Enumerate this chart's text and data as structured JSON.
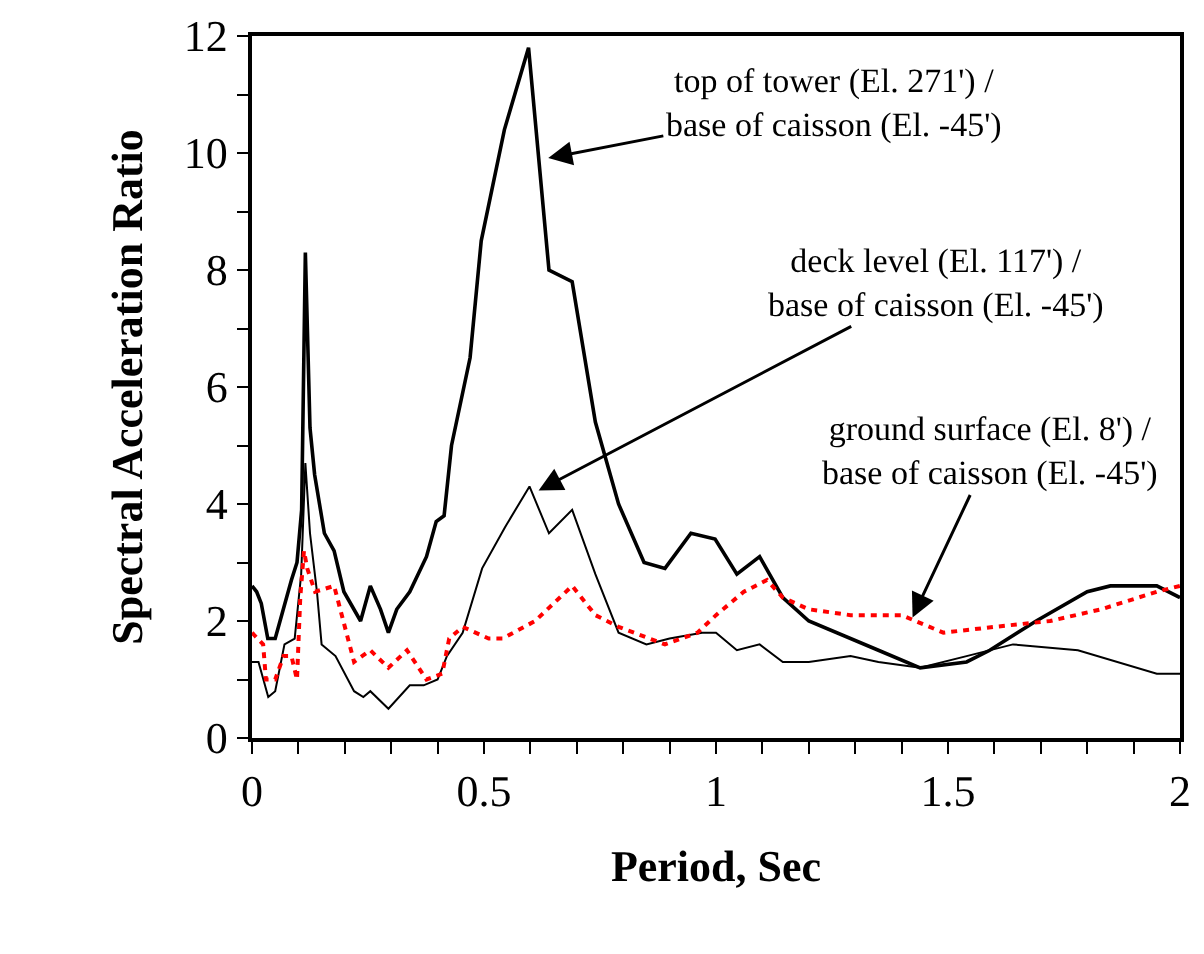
{
  "chart_data": {
    "type": "line",
    "xlabel": "Period, Sec",
    "ylabel": "Spectral Acceleration Ratio",
    "xlim": [
      0,
      2
    ],
    "ylim": [
      0,
      12
    ],
    "xticks": [
      0,
      {
        "value": 0.1,
        "label": null
      },
      {
        "value": 0.2,
        "label": null
      },
      {
        "value": 0.3,
        "label": null
      },
      {
        "value": 0.4,
        "label": null
      },
      0.5,
      {
        "value": 0.6,
        "label": null
      },
      {
        "value": 0.7,
        "label": null
      },
      {
        "value": 0.8,
        "label": null
      },
      {
        "value": 0.9,
        "label": null
      },
      1,
      {
        "value": 1.1,
        "label": null
      },
      {
        "value": 1.2,
        "label": null
      },
      {
        "value": 1.3,
        "label": null
      },
      {
        "value": 1.4,
        "label": null
      },
      1.5,
      {
        "value": 1.6,
        "label": null
      },
      {
        "value": 1.7,
        "label": null
      },
      {
        "value": 1.8,
        "label": null
      },
      {
        "value": 1.9,
        "label": null
      },
      2
    ],
    "yticks": [
      0,
      {
        "value": 1,
        "label": null
      },
      2,
      {
        "value": 3,
        "label": null
      },
      4,
      {
        "value": 5,
        "label": null
      },
      6,
      {
        "value": 7,
        "label": null
      },
      8,
      {
        "value": 9,
        "label": null
      },
      10,
      {
        "value": 11,
        "label": null
      },
      12
    ],
    "legend": false,
    "marker": "none",
    "series": [
      {
        "color": "#000000",
        "line_style": "solid",
        "x": [
          0,
          0.01,
          0.02,
          0.034,
          0.05,
          0.085,
          0.097,
          0.107,
          0.115,
          0.125,
          0.135,
          0.156,
          0.177,
          0.198,
          0.234,
          0.255,
          0.277,
          0.294,
          0.312,
          0.34,
          0.376,
          0.397,
          0.414,
          0.43,
          0.47,
          0.494,
          0.544,
          0.596,
          0.64,
          0.69,
          0.74,
          0.79,
          0.845,
          0.89,
          0.946,
          0.998,
          1.045,
          1.094,
          1.144,
          1.2,
          1.35,
          1.44,
          1.54,
          1.59,
          1.69,
          1.8,
          1.85,
          1.95,
          2.0
        ],
        "values": [
          2.6,
          2.5,
          2.3,
          1.7,
          1.7,
          2.7,
          3.0,
          3.9,
          8.3,
          5.3,
          4.5,
          3.5,
          3.2,
          2.5,
          2.0,
          2.6,
          2.2,
          1.8,
          2.2,
          2.5,
          3.1,
          3.7,
          3.8,
          5.0,
          6.5,
          8.5,
          10.4,
          11.8,
          8.0,
          7.8,
          5.4,
          4.0,
          3.0,
          2.9,
          3.5,
          3.4,
          2.8,
          3.1,
          2.4,
          2.0,
          1.5,
          1.2,
          1.3,
          1.5,
          2.0,
          2.5,
          2.6,
          2.6,
          2.4
        ]
      },
      {
        "color": "#000000",
        "line_style": "solid",
        "x": [
          0,
          0.014,
          0.035,
          0.05,
          0.07,
          0.092,
          0.106,
          0.115,
          0.125,
          0.14,
          0.15,
          0.18,
          0.22,
          0.24,
          0.255,
          0.294,
          0.34,
          0.37,
          0.4,
          0.42,
          0.454,
          0.496,
          0.545,
          0.598,
          0.64,
          0.69,
          0.74,
          0.79,
          0.85,
          0.9,
          0.97,
          1.0,
          1.045,
          1.094,
          1.144,
          1.2,
          1.29,
          1.35,
          1.44,
          1.54,
          1.64,
          1.78,
          1.95,
          2.0
        ],
        "values": [
          1.3,
          1.3,
          0.7,
          0.8,
          1.6,
          1.7,
          2.8,
          4.7,
          3.5,
          2.5,
          1.6,
          1.4,
          0.8,
          0.7,
          0.8,
          0.5,
          0.9,
          0.9,
          1.0,
          1.4,
          1.8,
          2.9,
          3.6,
          4.3,
          3.5,
          3.9,
          2.8,
          1.8,
          1.6,
          1.7,
          1.8,
          1.8,
          1.5,
          1.6,
          1.3,
          1.3,
          1.4,
          1.3,
          1.2,
          1.4,
          1.6,
          1.5,
          1.1,
          1.1
        ]
      },
      {
        "color": "#ff0000",
        "line_style": "dotted",
        "x": [
          0,
          0.024,
          0.03,
          0.05,
          0.068,
          0.085,
          0.097,
          0.104,
          0.112,
          0.119,
          0.136,
          0.177,
          0.22,
          0.255,
          0.294,
          0.334,
          0.376,
          0.41,
          0.425,
          0.454,
          0.51,
          0.54,
          0.61,
          0.69,
          0.74,
          0.79,
          0.89,
          0.96,
          1.0,
          1.06,
          1.11,
          1.144,
          1.2,
          1.29,
          1.4,
          1.49,
          1.6,
          1.72,
          1.83,
          1.95,
          2.0
        ],
        "values": [
          1.8,
          1.6,
          1.0,
          1.0,
          1.4,
          1.4,
          1.0,
          2.4,
          3.2,
          2.9,
          2.5,
          2.6,
          1.3,
          1.5,
          1.2,
          1.5,
          1.0,
          1.1,
          1.7,
          1.9,
          1.7,
          1.7,
          2.0,
          2.6,
          2.1,
          1.9,
          1.6,
          1.8,
          2.1,
          2.5,
          2.7,
          2.4,
          2.2,
          2.1,
          2.1,
          1.8,
          1.9,
          2.0,
          2.2,
          2.5,
          2.6
        ]
      }
    ],
    "annotations": [
      {
        "text": "top of tower (El. 271') /\nbase of caisson (El. -45')",
        "x": 0.63,
        "y": 9.9
      },
      {
        "text": "deck level (El. 117') /\nbase of caisson (El. -45')",
        "x": 0.61,
        "y": 4.2
      },
      {
        "text": "ground surface (El. 8') /\nbase of caisson (El. -45')",
        "x": 1.42,
        "y": 2.0
      }
    ]
  }
}
